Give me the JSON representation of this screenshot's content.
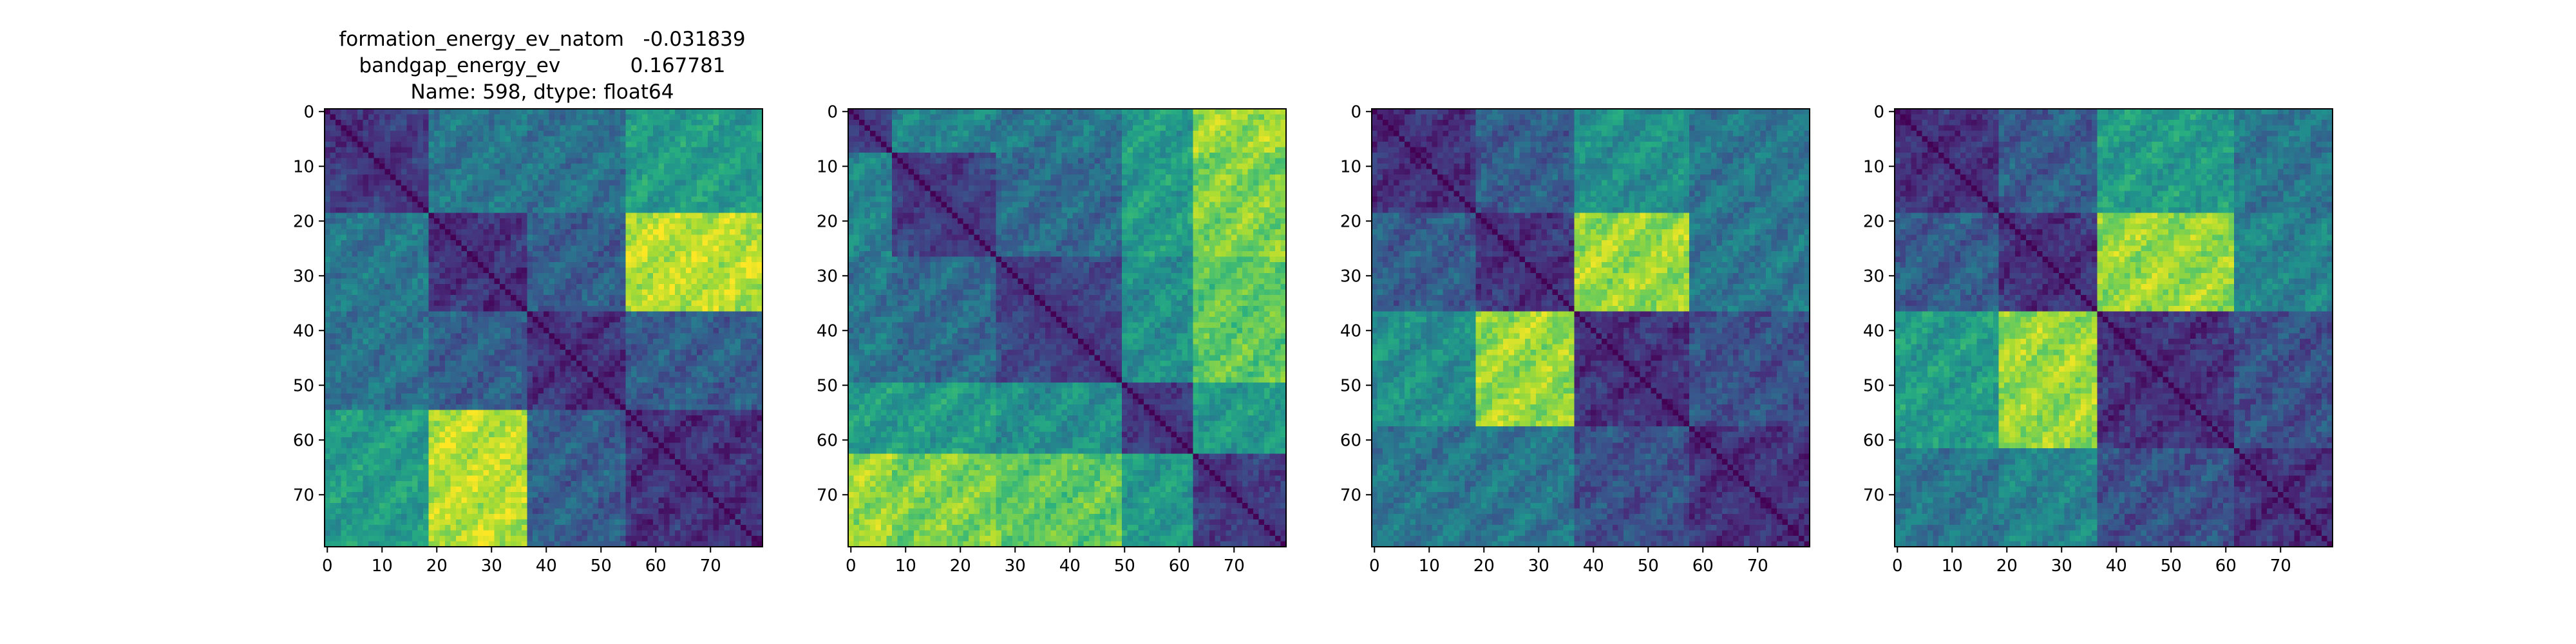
{
  "figure": {
    "title_lines": [
      {
        "text": "formation_energy_ev_natom   -0.031839"
      },
      {
        "text": "bandgap_energy_ev           0.167781"
      },
      {
        "text": "Name: 598, dtype: float64"
      }
    ]
  },
  "chart_data": [
    {
      "type": "heatmap",
      "title": "formation_energy_ev_natom   -0.031839\nbandgap_energy_ev           0.167781\nName: 598, dtype: float64",
      "xlabel": "",
      "ylabel": "",
      "size": 80,
      "xlim": [
        0,
        79
      ],
      "ylim": [
        79,
        0
      ],
      "xticks": [
        0,
        10,
        20,
        30,
        40,
        50,
        60,
        70
      ],
      "yticks": [
        0,
        10,
        20,
        30,
        40,
        50,
        60,
        70
      ],
      "colormap": "viridis",
      "blocks": [
        0,
        19,
        37,
        55,
        80
      ],
      "block_values": [
        [
          0.18,
          0.4,
          0.38,
          0.55
        ],
        [
          0.4,
          0.15,
          0.3,
          0.9
        ],
        [
          0.38,
          0.3,
          0.15,
          0.3
        ],
        [
          0.55,
          0.9,
          0.3,
          0.15
        ]
      ]
    },
    {
      "type": "heatmap",
      "title": "",
      "xlabel": "",
      "ylabel": "",
      "size": 80,
      "xlim": [
        0,
        79
      ],
      "ylim": [
        79,
        0
      ],
      "xticks": [
        0,
        10,
        20,
        30,
        40,
        50,
        60,
        70
      ],
      "yticks": [
        0,
        10,
        20,
        30,
        40,
        50,
        60,
        70
      ],
      "colormap": "viridis",
      "blocks": [
        0,
        8,
        27,
        50,
        63,
        80
      ],
      "block_values": [
        [
          0.3,
          0.45,
          0.4,
          0.55,
          0.85
        ],
        [
          0.45,
          0.2,
          0.35,
          0.55,
          0.8
        ],
        [
          0.4,
          0.35,
          0.22,
          0.5,
          0.75
        ],
        [
          0.55,
          0.55,
          0.5,
          0.2,
          0.55
        ],
        [
          0.85,
          0.8,
          0.75,
          0.55,
          0.2
        ]
      ]
    },
    {
      "type": "heatmap",
      "title": "",
      "xlabel": "",
      "ylabel": "",
      "size": 80,
      "xlim": [
        0,
        79
      ],
      "ylim": [
        79,
        0
      ],
      "xticks": [
        0,
        10,
        20,
        30,
        40,
        50,
        60,
        70
      ],
      "yticks": [
        0,
        10,
        20,
        30,
        40,
        50,
        60,
        70
      ],
      "colormap": "viridis",
      "blocks": [
        0,
        19,
        37,
        58,
        80
      ],
      "block_values": [
        [
          0.15,
          0.3,
          0.5,
          0.4
        ],
        [
          0.3,
          0.15,
          0.85,
          0.4
        ],
        [
          0.5,
          0.85,
          0.15,
          0.25
        ],
        [
          0.4,
          0.4,
          0.25,
          0.15
        ]
      ]
    },
    {
      "type": "heatmap",
      "title": "",
      "xlabel": "",
      "ylabel": "",
      "size": 80,
      "xlim": [
        0,
        79
      ],
      "ylim": [
        79,
        0
      ],
      "xticks": [
        0,
        10,
        20,
        30,
        40,
        50,
        60,
        70
      ],
      "yticks": [
        0,
        10,
        20,
        30,
        40,
        50,
        60,
        70
      ],
      "colormap": "viridis",
      "blocks": [
        0,
        19,
        37,
        62,
        80
      ],
      "block_values": [
        [
          0.15,
          0.3,
          0.55,
          0.4
        ],
        [
          0.3,
          0.15,
          0.85,
          0.45
        ],
        [
          0.55,
          0.85,
          0.15,
          0.25
        ],
        [
          0.4,
          0.45,
          0.25,
          0.15
        ]
      ]
    }
  ]
}
